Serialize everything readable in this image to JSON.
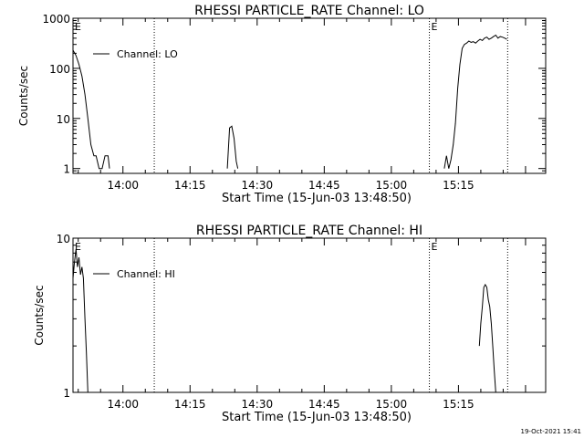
{
  "chart_data": [
    {
      "type": "line",
      "title": "RHESSI PARTICLE_RATE Channel: LO",
      "xlabel": "Start Time (15-Jun-03 13:48:50)",
      "ylabel": "Counts/sec",
      "yscale": "log",
      "ylim": [
        0.8,
        1000
      ],
      "xlim": [
        "13:48:50",
        "15:34:30"
      ],
      "x_ticks": [
        "14:00",
        "14:15",
        "14:30",
        "14:45",
        "15:00",
        "15:15"
      ],
      "y_ticks": [
        "1",
        "10",
        "100",
        "1000"
      ],
      "grid": false,
      "legend": "top-left",
      "vlines": [
        "14:07:00",
        "15:08:30",
        "15:26:00"
      ],
      "markers": [
        {
          "text": "E",
          "x": "13:48:50"
        },
        {
          "text": "E",
          "x": "15:08:30"
        }
      ],
      "series": [
        {
          "name": "Channel: LO",
          "x": [
            "13:48:50",
            "13:49:30",
            "13:50:10",
            "13:50:50",
            "13:51:30",
            "13:52:10",
            "13:52:50",
            "13:53:30",
            "13:54:00",
            "13:54:40",
            "13:55:00",
            "13:55:20",
            "13:56:00",
            "13:56:20",
            "13:56:40",
            "13:57:00",
            "14:12:30",
            "14:23:20",
            "14:23:50",
            "14:24:20",
            "14:24:50",
            "14:25:20",
            "14:25:40",
            "15:11:50",
            "15:12:20",
            "15:12:50",
            "15:13:20",
            "15:13:50",
            "15:14:20",
            "15:14:50",
            "15:15:20",
            "15:15:50",
            "15:16:20",
            "15:16:50",
            "15:17:20",
            "15:17:50",
            "15:18:20",
            "15:18:50",
            "15:19:20",
            "15:19:50",
            "15:20:20",
            "15:20:50",
            "15:21:20",
            "15:21:50",
            "15:22:20",
            "15:22:50",
            "15:23:20",
            "15:23:50",
            "15:24:20",
            "15:24:50",
            "15:25:20",
            "15:25:50"
          ],
          "y": [
            230,
            180,
            120,
            70,
            30,
            10,
            3,
            1.8,
            1.8,
            1,
            1,
            1,
            1.8,
            1.8,
            1.8,
            1,
            1,
            1,
            6.5,
            7,
            4,
            1.4,
            1,
            1,
            1.8,
            1,
            1.5,
            3,
            8,
            40,
            120,
            250,
            300,
            320,
            350,
            330,
            340,
            320,
            350,
            380,
            360,
            400,
            420,
            380,
            400,
            430,
            460,
            400,
            430,
            420,
            400,
            380
          ]
        }
      ]
    },
    {
      "type": "line",
      "title": "RHESSI PARTICLE_RATE Channel: HI",
      "xlabel": "Start Time (15-Jun-03 13:48:50)",
      "ylabel": "Counts/sec",
      "yscale": "log",
      "ylim": [
        1,
        10
      ],
      "xlim": [
        "13:48:50",
        "15:34:30"
      ],
      "x_ticks": [
        "14:00",
        "14:15",
        "14:30",
        "14:45",
        "15:00",
        "15:15"
      ],
      "y_ticks": [
        "1",
        "10"
      ],
      "grid": false,
      "legend": "top-left",
      "vlines": [
        "14:07:00",
        "15:08:30",
        "15:26:00"
      ],
      "markers": [
        {
          "text": "E",
          "x": "13:48:50"
        },
        {
          "text": "E",
          "x": "15:08:30"
        }
      ],
      "series": [
        {
          "name": "Channel: HI",
          "x": [
            "13:48:50",
            "13:49:10",
            "13:49:30",
            "13:49:50",
            "13:50:10",
            "13:50:30",
            "13:50:50",
            "13:51:10",
            "13:51:30",
            "13:51:50",
            "13:52:10",
            "13:52:30",
            "15:19:40",
            "15:20:00",
            "15:20:20",
            "15:20:40",
            "15:21:00",
            "15:21:20",
            "15:21:40",
            "15:22:00",
            "15:22:20",
            "15:22:40",
            "15:23:00",
            "15:23:20"
          ],
          "y": [
            5.5,
            7,
            8.5,
            6.5,
            7.5,
            5.8,
            6.5,
            5.5,
            3,
            1.8,
            1,
            1,
            2,
            2.8,
            3.6,
            4.8,
            5,
            4.8,
            4,
            3.6,
            2.8,
            2,
            1.4,
            1
          ]
        }
      ]
    }
  ],
  "footer": {
    "timestamp": "19-Oct-2021 15:41"
  }
}
